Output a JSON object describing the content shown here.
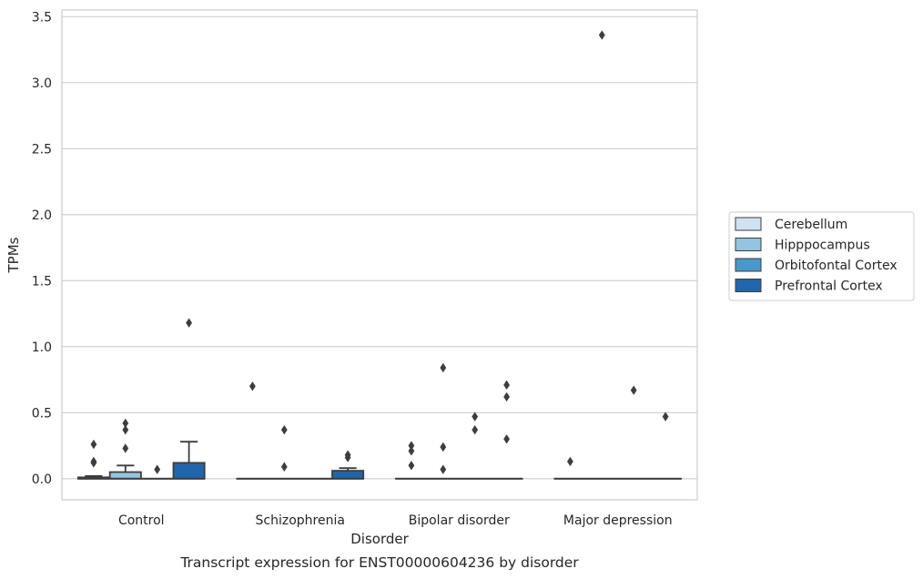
{
  "chart_data": {
    "type": "box",
    "caption": "Transcript expression for ENST00000604236 by disorder",
    "xlabel": "Disorder",
    "ylabel": "TPMs",
    "ylim": [
      -0.16,
      3.55
    ],
    "yticks": [
      0.0,
      0.5,
      1.0,
      1.5,
      2.0,
      2.5,
      3.0,
      3.5
    ],
    "ytick_labels": [
      "0.0",
      "0.5",
      "1.0",
      "1.5",
      "2.0",
      "2.5",
      "3.0",
      "3.5"
    ],
    "grid": "horizontal",
    "legend_position": "right",
    "categories": [
      "Control",
      "Schizophrenia",
      "Bipolar disorder",
      "Major depression"
    ],
    "series": [
      {
        "name": "Cerebellum",
        "color": "#d0e1f2",
        "boxes": [
          {
            "q1": 0.0,
            "median": 0.0,
            "q3": 0.01,
            "whisker_low": 0.0,
            "whisker_high": 0.02,
            "outliers": [
              0.13,
              0.12,
              0.26
            ]
          },
          {
            "q1": 0.0,
            "median": 0.0,
            "q3": 0.0,
            "whisker_low": 0.0,
            "whisker_high": 0.0,
            "outliers": [
              0.7
            ]
          },
          {
            "q1": 0.0,
            "median": 0.0,
            "q3": 0.0,
            "whisker_low": 0.0,
            "whisker_high": 0.0,
            "outliers": [
              0.1,
              0.21,
              0.25
            ]
          },
          {
            "q1": 0.0,
            "median": 0.0,
            "q3": 0.0,
            "whisker_low": 0.0,
            "whisker_high": 0.0,
            "outliers": [
              0.13
            ]
          }
        ]
      },
      {
        "name": "Hipppocampus",
        "color": "#94c4df",
        "boxes": [
          {
            "q1": 0.0,
            "median": 0.0,
            "q3": 0.05,
            "whisker_low": 0.0,
            "whisker_high": 0.1,
            "outliers": [
              0.23,
              0.37,
              0.42
            ]
          },
          {
            "q1": 0.0,
            "median": 0.0,
            "q3": 0.0,
            "whisker_low": 0.0,
            "whisker_high": 0.0,
            "outliers": [
              0.09,
              0.37
            ]
          },
          {
            "q1": 0.0,
            "median": 0.0,
            "q3": 0.0,
            "whisker_low": 0.0,
            "whisker_high": 0.0,
            "outliers": [
              0.07,
              0.24,
              0.84
            ]
          },
          {
            "q1": 0.0,
            "median": 0.0,
            "q3": 0.0,
            "whisker_low": 0.0,
            "whisker_high": 0.0,
            "outliers": [
              3.36
            ]
          }
        ]
      },
      {
        "name": "Orbitofontal Cortex",
        "color": "#4a98c9",
        "boxes": [
          {
            "q1": 0.0,
            "median": 0.0,
            "q3": 0.0,
            "whisker_low": 0.0,
            "whisker_high": 0.0,
            "outliers": [
              0.07
            ]
          },
          {
            "q1": 0.0,
            "median": 0.0,
            "q3": 0.0,
            "whisker_low": 0.0,
            "whisker_high": 0.0,
            "outliers": []
          },
          {
            "q1": 0.0,
            "median": 0.0,
            "q3": 0.0,
            "whisker_low": 0.0,
            "whisker_high": 0.0,
            "outliers": [
              0.37,
              0.47
            ]
          },
          {
            "q1": 0.0,
            "median": 0.0,
            "q3": 0.0,
            "whisker_low": 0.0,
            "whisker_high": 0.0,
            "outliers": [
              0.67
            ]
          }
        ]
      },
      {
        "name": "Prefrontal Cortex",
        "color": "#2166ac",
        "boxes": [
          {
            "q1": 0.0,
            "median": 0.0,
            "q3": 0.12,
            "whisker_low": 0.0,
            "whisker_high": 0.28,
            "outliers": [
              1.18
            ]
          },
          {
            "q1": 0.0,
            "median": 0.0,
            "q3": 0.06,
            "whisker_low": 0.0,
            "whisker_high": 0.08,
            "outliers": [
              0.16,
              0.18
            ]
          },
          {
            "q1": 0.0,
            "median": 0.0,
            "q3": 0.0,
            "whisker_low": 0.0,
            "whisker_high": 0.0,
            "outliers": [
              0.3,
              0.62,
              0.71
            ]
          },
          {
            "q1": 0.0,
            "median": 0.0,
            "q3": 0.0,
            "whisker_low": 0.0,
            "whisker_high": 0.0,
            "outliers": [
              0.47
            ]
          }
        ]
      }
    ]
  }
}
